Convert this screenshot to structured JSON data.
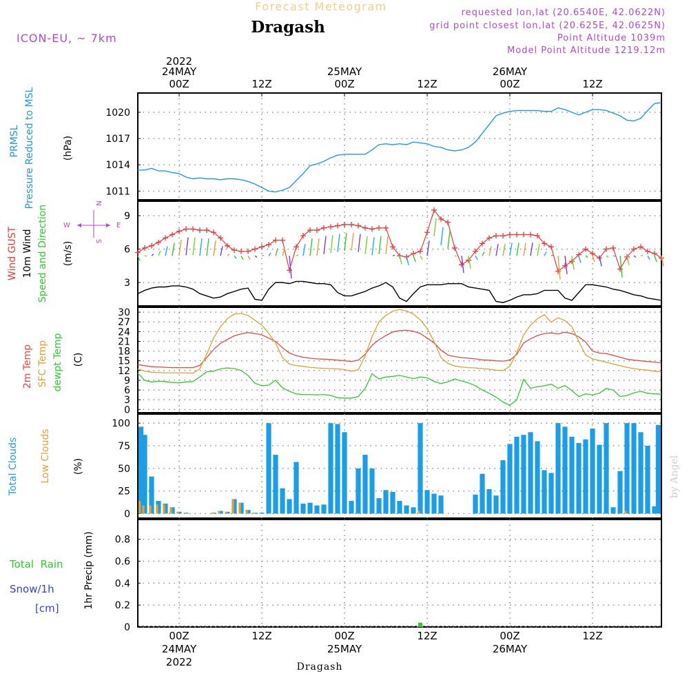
{
  "header": {
    "subtitle": "Forecast Meteogram",
    "title": "Dragash",
    "model": "ICON-EU,  ~ 7km",
    "requested": "requested lon,lat (20.6540E, 42.0622N)",
    "grid_point": "grid point closest lon,lat (20.625E, 42.0625N)",
    "point_altitude": "Point Altitude 1039m",
    "model_altitude": "Model Point Altitude 1219.12m",
    "footer": "Dragash",
    "watermark": "by Angel"
  },
  "colors": {
    "pressure": "#1e9be6",
    "gust": "#ec3a3a",
    "wind": "#000000",
    "direction": "#2ecc2e",
    "temp2m": "#e84848",
    "sfc": "#e0a030",
    "dewpt": "#2ecc2e",
    "total_clouds": "#1a9ee8",
    "low_clouds": "#e3a12f",
    "rain": "#2ecc2e",
    "snow": "#3344dd",
    "legend_purple": "#b04ad0"
  },
  "time_axis": {
    "top_labels": [
      {
        "hour": 6,
        "lines": [
          "2022",
          "24MAY",
          "00Z"
        ]
      },
      {
        "hour": 18,
        "lines": [
          "",
          "",
          "12Z"
        ]
      },
      {
        "hour": 30,
        "lines": [
          "",
          "25MAY",
          "00Z"
        ]
      },
      {
        "hour": 42,
        "lines": [
          "",
          "",
          "12Z"
        ]
      },
      {
        "hour": 54,
        "lines": [
          "",
          "26MAY",
          "00Z"
        ]
      },
      {
        "hour": 66,
        "lines": [
          "",
          "",
          "12Z"
        ]
      }
    ],
    "bottom_labels": [
      {
        "hour": 6,
        "lines": [
          "00Z",
          "24MAY",
          "2022"
        ]
      },
      {
        "hour": 18,
        "lines": [
          "12Z",
          "",
          ""
        ]
      },
      {
        "hour": 30,
        "lines": [
          "00Z",
          "25MAY",
          ""
        ]
      },
      {
        "hour": 42,
        "lines": [
          "12Z",
          "",
          ""
        ]
      },
      {
        "hour": 54,
        "lines": [
          "00Z",
          "26MAY",
          ""
        ]
      },
      {
        "hour": 66,
        "lines": [
          "12Z",
          "",
          ""
        ]
      }
    ]
  },
  "panels": {
    "pressure": {
      "labels": [
        "PRMSL",
        "Pressure Reduced to MSL"
      ],
      "unit": "(hPa)"
    },
    "wind": {
      "labels": [
        "Wind GUST",
        "10m Wind",
        "Speed and Direction"
      ],
      "unit": "(m/s)",
      "compass": {
        "n": "N",
        "s": "S",
        "w": "W",
        "e": "E"
      }
    },
    "temp": {
      "labels": [
        "2m Temp",
        "SFC Temp",
        "dewpt Temp"
      ],
      "unit": "(C)"
    },
    "clouds": {
      "labels": [
        "Total Clouds",
        "Low Clouds"
      ],
      "unit": "(%)"
    },
    "precip": {
      "labels": [
        "Total  Rain",
        "Snow/1h",
        "[cm]"
      ],
      "unit": "1hr Precip (mm)"
    }
  },
  "chart_data": [
    {
      "type": "line",
      "ylabel": "(hPa)",
      "ylim": [
        1010.0,
        1022.2
      ],
      "yticks": [
        1011,
        1014,
        1017,
        1020
      ],
      "x": [
        0,
        1,
        2,
        3,
        4,
        5,
        6,
        7,
        8,
        9,
        10,
        11,
        12,
        13,
        14,
        15,
        16,
        17,
        18,
        19,
        20,
        21,
        22,
        23,
        24,
        25,
        26,
        27,
        28,
        29,
        30,
        31,
        32,
        33,
        34,
        35,
        36,
        37,
        38,
        39,
        40,
        41,
        42,
        43,
        44,
        45,
        46,
        47,
        48,
        49,
        50,
        51,
        52,
        53,
        54,
        55,
        56,
        57,
        58,
        59,
        60,
        61,
        62,
        63,
        64,
        65,
        66,
        67,
        68,
        69,
        70,
        71,
        72,
        73,
        74,
        75,
        76
      ],
      "series": [
        {
          "name": "PRMSL",
          "values": [
            1013.4,
            1013.4,
            1013.6,
            1013.3,
            1013.3,
            1013.1,
            1013.0,
            1012.6,
            1012.4,
            1012.5,
            1012.4,
            1012.4,
            1012.3,
            1012.4,
            1012.4,
            1012.3,
            1012.1,
            1011.8,
            1011.4,
            1011.0,
            1010.9,
            1011.1,
            1011.4,
            1012.2,
            1013.0,
            1013.9,
            1014.1,
            1014.4,
            1014.8,
            1015.1,
            1015.2,
            1015.2,
            1015.2,
            1015.2,
            1015.7,
            1016.3,
            1016.4,
            1016.3,
            1016.4,
            1016.3,
            1016.6,
            1016.5,
            1016.4,
            1016.1,
            1016.0,
            1015.7,
            1015.6,
            1015.7,
            1016.0,
            1016.6,
            1017.6,
            1018.6,
            1019.6,
            1019.9,
            1020.1,
            1020.2,
            1020.2,
            1020.2,
            1020.2,
            1020.1,
            1020.1,
            1020.5,
            1020.3,
            1020.0,
            1019.7,
            1020.0,
            1020.3,
            1020.3,
            1020.2,
            1019.9,
            1019.6,
            1019.1,
            1019.0,
            1019.3,
            1020.2,
            1021.0,
            1021.1
          ]
        }
      ]
    },
    {
      "type": "line",
      "ylabel": "(m/s)",
      "ylim": [
        0.9,
        10.3
      ],
      "yticks": [
        3,
        6,
        9
      ],
      "x": [
        0,
        1,
        2,
        3,
        4,
        5,
        6,
        7,
        8,
        9,
        10,
        11,
        12,
        13,
        14,
        15,
        16,
        17,
        18,
        19,
        20,
        21,
        22,
        23,
        24,
        25,
        26,
        27,
        28,
        29,
        30,
        31,
        32,
        33,
        34,
        35,
        36,
        37,
        38,
        39,
        40,
        41,
        42,
        43,
        44,
        45,
        46,
        47,
        48,
        49,
        50,
        51,
        52,
        53,
        54,
        55,
        56,
        57,
        58,
        59,
        60,
        61,
        62,
        63,
        64,
        65,
        66,
        67,
        68,
        69,
        70,
        71,
        72,
        73,
        74,
        75,
        76
      ],
      "series": [
        {
          "name": "Wind GUST",
          "values": [
            5.7,
            6.1,
            6.3,
            6.6,
            7.0,
            7.3,
            7.6,
            7.8,
            7.8,
            7.7,
            7.7,
            7.5,
            7.0,
            6.3,
            5.9,
            5.8,
            5.8,
            6.0,
            6.2,
            6.4,
            6.8,
            6.8,
            4.1,
            6.2,
            7.2,
            7.7,
            7.7,
            7.9,
            8.0,
            8.1,
            8.2,
            8.2,
            8.1,
            7.9,
            7.8,
            7.9,
            7.9,
            6.2,
            5.4,
            5.3,
            5.6,
            5.8,
            7.5,
            9.5,
            8.7,
            8.4,
            6.1,
            4.6,
            5.0,
            5.8,
            6.5,
            7.0,
            7.2,
            7.2,
            7.3,
            7.3,
            7.3,
            7.3,
            7.2,
            6.5,
            6.2,
            4.0,
            4.5,
            4.9,
            5.5,
            6.0,
            5.6,
            5.2,
            6.0,
            6.1,
            4.2,
            5.3,
            6.0,
            6.2,
            5.8,
            5.6,
            5.2
          ]
        },
        {
          "name": "10m Wind",
          "values": [
            2.0,
            2.3,
            2.5,
            2.6,
            2.6,
            2.7,
            2.7,
            2.6,
            2.4,
            2.0,
            1.8,
            1.6,
            1.7,
            2.0,
            2.2,
            2.4,
            2.5,
            1.5,
            1.4,
            2.4,
            3.0,
            3.0,
            2.9,
            3.1,
            3.1,
            3.0,
            2.9,
            2.9,
            2.8,
            2.1,
            1.8,
            1.8,
            2.0,
            2.2,
            2.5,
            2.7,
            3.0,
            2.6,
            1.6,
            1.3,
            2.0,
            2.6,
            2.8,
            2.8,
            2.8,
            2.9,
            2.9,
            2.9,
            2.6,
            2.5,
            2.4,
            2.3,
            1.3,
            1.2,
            1.4,
            1.7,
            1.9,
            1.9,
            2.0,
            2.3,
            2.3,
            2.3,
            1.6,
            1.4,
            2.1,
            2.8,
            2.8,
            2.7,
            2.6,
            2.4,
            2.3,
            2.1,
            1.9,
            1.8,
            1.6,
            1.5,
            1.4
          ]
        }
      ]
    },
    {
      "type": "line",
      "ylabel": "(C)",
      "ylim": [
        -1,
        31.5
      ],
      "yticks": [
        0,
        3,
        6,
        9,
        12,
        15,
        18,
        21,
        24,
        27,
        30
      ],
      "x": [
        0,
        1,
        2,
        3,
        4,
        5,
        6,
        7,
        8,
        9,
        10,
        11,
        12,
        13,
        14,
        15,
        16,
        17,
        18,
        19,
        20,
        21,
        22,
        23,
        24,
        25,
        26,
        27,
        28,
        29,
        30,
        31,
        32,
        33,
        34,
        35,
        36,
        37,
        38,
        39,
        40,
        41,
        42,
        43,
        44,
        45,
        46,
        47,
        48,
        49,
        50,
        51,
        52,
        53,
        54,
        55,
        56,
        57,
        58,
        59,
        60,
        61,
        62,
        63,
        64,
        65,
        66,
        67,
        68,
        69,
        70,
        71,
        72,
        73,
        74,
        75,
        76
      ],
      "series": [
        {
          "name": "2m Temp",
          "values": [
            13.8,
            13.5,
            13.2,
            13.1,
            13.0,
            12.9,
            12.9,
            12.9,
            12.9,
            13.6,
            16.0,
            18.5,
            20.4,
            21.6,
            22.7,
            23.3,
            23.7,
            23.4,
            23.0,
            22.0,
            21.0,
            19.0,
            17.4,
            16.6,
            16.1,
            15.8,
            15.6,
            15.5,
            15.4,
            15.2,
            15.0,
            14.8,
            15.2,
            17.0,
            19.8,
            21.5,
            22.8,
            23.9,
            24.3,
            24.4,
            24.1,
            23.4,
            22.0,
            20.5,
            18.3,
            16.8,
            16.3,
            16.0,
            15.8,
            15.6,
            15.3,
            15.2,
            15.0,
            14.9,
            15.2,
            17.0,
            20.5,
            21.8,
            22.8,
            23.4,
            23.6,
            23.3,
            23.8,
            23.4,
            22.4,
            20.8,
            18.0,
            17.4,
            17.2,
            16.7,
            16.1,
            15.5,
            15.2,
            15.0,
            14.8,
            14.6,
            14.4
          ]
        },
        {
          "name": "SFC Temp",
          "values": [
            12.5,
            11.8,
            11.5,
            11.4,
            11.3,
            11.3,
            11.3,
            11.3,
            11.2,
            12.5,
            17.0,
            22.0,
            25.5,
            28.0,
            29.4,
            29.6,
            29.0,
            27.5,
            26.0,
            23.5,
            20.5,
            16.0,
            14.0,
            13.5,
            13.3,
            13.0,
            12.8,
            12.7,
            12.6,
            12.5,
            12.3,
            11.8,
            12.2,
            16.5,
            22.5,
            27.0,
            29.0,
            30.3,
            30.8,
            30.4,
            29.4,
            27.6,
            25.0,
            21.0,
            16.0,
            14.2,
            13.4,
            13.1,
            12.9,
            12.8,
            12.6,
            12.4,
            12.1,
            12.0,
            13.3,
            17.5,
            23.0,
            26.0,
            28.0,
            29.2,
            26.9,
            28.3,
            27.4,
            25.5,
            21.0,
            16.8,
            15.6,
            15.1,
            14.6,
            14.0,
            13.5,
            13.0,
            12.6,
            12.3,
            12.1,
            11.8,
            11.6
          ]
        },
        {
          "name": "dewpt Temp",
          "values": [
            11.2,
            9.0,
            8.5,
            8.7,
            8.6,
            8.3,
            8.2,
            8.5,
            8.6,
            10.0,
            11.6,
            11.8,
            12.5,
            12.8,
            12.6,
            12.0,
            10.5,
            8.1,
            7.3,
            7.5,
            9.0,
            6.7,
            5.6,
            4.8,
            4.6,
            4.6,
            4.5,
            4.6,
            4.3,
            3.6,
            3.5,
            3.5,
            4.0,
            6.5,
            11.0,
            9.4,
            10.0,
            10.2,
            10.5,
            10.0,
            9.5,
            10.0,
            9.8,
            8.6,
            8.0,
            8.5,
            9.4,
            8.8,
            8.2,
            7.3,
            6.0,
            5.0,
            3.8,
            2.3,
            1.3,
            3.0,
            9.3,
            6.5,
            7.0,
            7.3,
            7.8,
            6.5,
            7.4,
            5.8,
            4.0,
            4.8,
            4.5,
            5.0,
            6.5,
            6.0,
            4.0,
            4.3,
            5.1,
            5.6,
            5.0,
            4.8,
            4.7
          ]
        }
      ]
    },
    {
      "type": "bar",
      "ylabel": "(%)",
      "ylim": [
        -5,
        110
      ],
      "yticks": [
        0,
        25,
        50,
        75,
        100
      ],
      "x": [
        0,
        1,
        2,
        3,
        4,
        5,
        6,
        7,
        8,
        9,
        10,
        11,
        12,
        13,
        14,
        15,
        16,
        17,
        18,
        19,
        20,
        21,
        22,
        23,
        24,
        25,
        26,
        27,
        28,
        29,
        30,
        31,
        32,
        33,
        34,
        35,
        36,
        37,
        38,
        39,
        40,
        41,
        42,
        43,
        44,
        45,
        46,
        47,
        48,
        49,
        50,
        51,
        52,
        53,
        54,
        55,
        56,
        57,
        58,
        59,
        60,
        61,
        62,
        63,
        64,
        65,
        66,
        67,
        68,
        69,
        70,
        71,
        72,
        73,
        74,
        75,
        76
      ],
      "series": [
        {
          "name": "Total Clouds",
          "values": [
            96,
            87,
            41,
            14,
            11,
            7,
            2,
            1,
            0,
            0,
            0,
            1,
            3,
            2,
            16,
            12,
            4,
            1,
            1,
            100,
            65,
            28,
            16,
            57,
            11,
            12,
            9,
            10,
            100,
            99,
            90,
            14,
            50,
            65,
            50,
            17,
            26,
            24,
            14,
            9,
            7,
            100,
            26,
            22,
            20,
            0,
            0,
            0,
            0,
            21,
            44,
            27,
            20,
            59,
            77,
            85,
            87,
            90,
            80,
            48,
            45,
            100,
            96,
            85,
            78,
            82,
            94,
            76,
            100,
            7,
            47,
            100,
            100,
            90,
            75,
            8,
            98
          ]
        },
        {
          "name": "Low Clouds",
          "values": [
            14,
            9,
            9,
            10,
            10,
            7,
            2,
            1,
            0,
            0,
            0,
            1,
            3,
            2,
            16,
            12,
            4,
            1,
            0,
            0,
            0,
            0,
            0,
            0,
            0,
            0,
            0,
            0,
            0,
            0,
            0,
            0,
            0,
            0,
            0,
            0,
            0,
            0,
            0,
            0,
            0,
            3,
            0,
            0,
            0,
            0,
            0,
            0,
            0,
            0,
            0,
            0,
            0,
            0,
            0,
            0,
            0,
            0,
            0,
            0,
            0,
            0,
            0,
            0,
            0,
            0,
            0,
            0,
            0,
            0,
            0,
            3,
            0,
            0,
            0,
            0,
            0
          ]
        }
      ]
    },
    {
      "type": "bar",
      "ylabel": "1hr Precip (mm)",
      "ylim": [
        0,
        0.98
      ],
      "yticks": [
        0,
        0.2,
        0.4,
        0.6,
        0.8
      ],
      "x": [
        41
      ],
      "series": [
        {
          "name": "Total  Rain",
          "values": [
            0.04
          ]
        },
        {
          "name": "Snow/1h",
          "values": [
            0
          ]
        }
      ]
    }
  ]
}
